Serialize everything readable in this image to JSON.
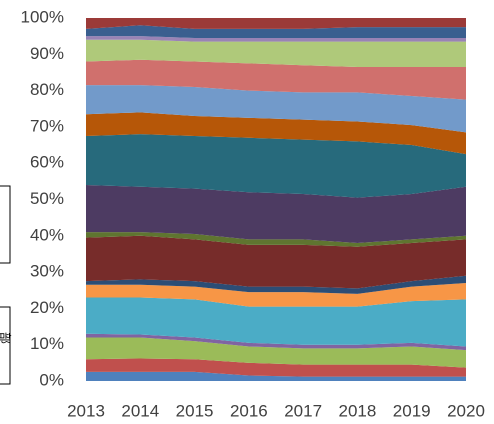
{
  "chart_data": {
    "type": "stacked-area",
    "categories": [
      "2013",
      "2014",
      "2015",
      "2016",
      "2017",
      "2018",
      "2019",
      "2020"
    ],
    "series": [
      {
        "color": "#4f81bd",
        "values": [
          2.5,
          2.5,
          2.5,
          1.5,
          1.2,
          1.2,
          1.2,
          1.2
        ]
      },
      {
        "color": "#c0504d",
        "values": [
          3.5,
          3.7,
          3.5,
          3.5,
          3.3,
          3.3,
          3.3,
          2.5
        ]
      },
      {
        "color": "#9bbb59",
        "values": [
          6,
          5.8,
          5,
          4.5,
          4.5,
          4.5,
          5,
          4.8
        ]
      },
      {
        "color": "#8064a2",
        "values": [
          1,
          0.8,
          1,
          1,
          1,
          1,
          1,
          1
        ]
      },
      {
        "color": "#4bacc6",
        "values": [
          10,
          10.2,
          10.5,
          10,
          10.5,
          10.5,
          11.5,
          13
        ]
      },
      {
        "color": "#f79646",
        "values": [
          3.5,
          3.5,
          3.5,
          4,
          4,
          3.5,
          4,
          4.5
        ]
      },
      {
        "color": "#2c4d75",
        "values": [
          1,
          1.5,
          1.5,
          1.5,
          1.5,
          1.5,
          1.5,
          2
        ]
      },
      {
        "color": "#772c2a",
        "values": [
          12,
          12,
          11.5,
          11.5,
          11.5,
          11.5,
          10.5,
          10
        ]
      },
      {
        "color": "#5f7530",
        "values": [
          1.5,
          1,
          1.5,
          1.5,
          1.5,
          1,
          1,
          1
        ]
      },
      {
        "color": "#4d3b62",
        "values": [
          13,
          12.5,
          12.5,
          13,
          12.5,
          12.5,
          12.5,
          13.5
        ]
      },
      {
        "color": "#276a7c",
        "values": [
          13.5,
          14.5,
          14.5,
          15,
          15,
          15.5,
          13.5,
          9
        ]
      },
      {
        "color": "#b65708",
        "values": [
          6,
          6,
          5.5,
          5.5,
          5.5,
          5.5,
          5.5,
          6
        ]
      },
      {
        "color": "#729aca",
        "values": [
          8,
          7.5,
          8,
          7.5,
          7.5,
          8,
          8,
          9
        ]
      },
      {
        "color": "#d0706d",
        "values": [
          6.5,
          7,
          7,
          7.5,
          7.5,
          7,
          8,
          9
        ]
      },
      {
        "color": "#afc97a",
        "values": [
          6,
          5.5,
          5.5,
          6,
          6.5,
          7,
          7,
          7
        ]
      },
      {
        "color": "#9983b5",
        "values": [
          1,
          1,
          1,
          1,
          1,
          1,
          1,
          1
        ]
      },
      {
        "color": "#3a5f8f",
        "values": [
          2,
          3,
          2.5,
          2.5,
          2.5,
          3,
          3,
          3
        ]
      },
      {
        "color": "#9b3a38",
        "values": [
          3,
          2,
          3,
          3,
          3,
          2.5,
          2.5,
          2.5
        ]
      }
    ],
    "ylim": [
      0,
      100
    ],
    "yticks": [
      {
        "value": 0,
        "label": "0%"
      },
      {
        "value": 10,
        "label": "10%"
      },
      {
        "value": 20,
        "label": "20%"
      },
      {
        "value": 30,
        "label": "30%"
      },
      {
        "value": 40,
        "label": "40%"
      },
      {
        "value": 50,
        "label": "50%"
      },
      {
        "value": 60,
        "label": "60%"
      },
      {
        "value": 70,
        "label": "70%"
      },
      {
        "value": 80,
        "label": "80%"
      },
      {
        "value": 90,
        "label": "90%"
      },
      {
        "value": 100,
        "label": "100%"
      }
    ],
    "legend_fragment": "部"
  }
}
